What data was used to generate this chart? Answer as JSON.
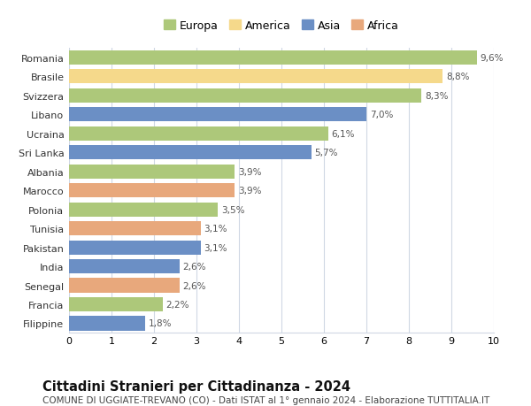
{
  "categories": [
    "Romania",
    "Brasile",
    "Svizzera",
    "Libano",
    "Ucraina",
    "Sri Lanka",
    "Albania",
    "Marocco",
    "Polonia",
    "Tunisia",
    "Pakistan",
    "India",
    "Senegal",
    "Francia",
    "Filippine"
  ],
  "values": [
    9.6,
    8.8,
    8.3,
    7.0,
    6.1,
    5.7,
    3.9,
    3.9,
    3.5,
    3.1,
    3.1,
    2.6,
    2.6,
    2.2,
    1.8
  ],
  "labels": [
    "9,6%",
    "8,8%",
    "8,3%",
    "7,0%",
    "6,1%",
    "5,7%",
    "3,9%",
    "3,9%",
    "3,5%",
    "3,1%",
    "3,1%",
    "2,6%",
    "2,6%",
    "2,2%",
    "1,8%"
  ],
  "continents": [
    "Europa",
    "America",
    "Europa",
    "Asia",
    "Europa",
    "Asia",
    "Europa",
    "Africa",
    "Europa",
    "Africa",
    "Asia",
    "Asia",
    "Africa",
    "Europa",
    "Asia"
  ],
  "continent_colors": {
    "Europa": "#adc87a",
    "America": "#f5d98b",
    "Asia": "#6b8fc5",
    "Africa": "#e8a87c"
  },
  "legend_order": [
    "Europa",
    "America",
    "Asia",
    "Africa"
  ],
  "title": "Cittadini Stranieri per Cittadinanza - 2024",
  "subtitle": "COMUNE DI UGGIATE-TREVANO (CO) - Dati ISTAT al 1° gennaio 2024 - Elaborazione TUTTITALIA.IT",
  "xlim": [
    0,
    10
  ],
  "xticks": [
    0,
    1,
    2,
    3,
    4,
    5,
    6,
    7,
    8,
    9,
    10
  ],
  "background_color": "#ffffff",
  "grid_color": "#d0d8e4",
  "bar_height": 0.75,
  "label_fontsize": 7.5,
  "tick_fontsize": 8,
  "title_fontsize": 10.5,
  "subtitle_fontsize": 7.5,
  "legend_fontsize": 9
}
